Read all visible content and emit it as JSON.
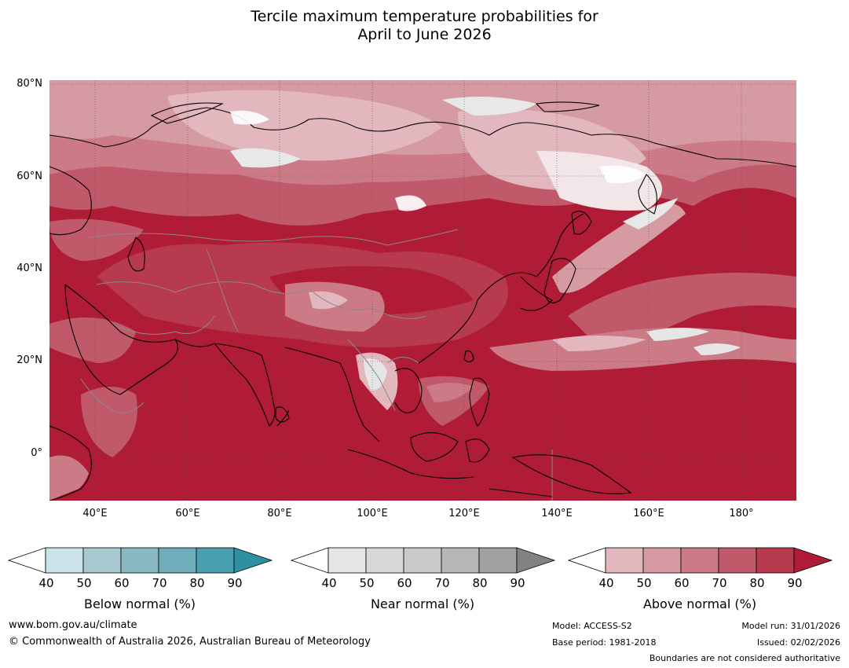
{
  "title_line1": "Tercile maximum temperature probabilities for",
  "title_line2": "April to June 2026",
  "lat_labels": [
    "80°N",
    "60°N",
    "40°N",
    "20°N",
    "0°"
  ],
  "lon_labels": [
    "40°E",
    "60°E",
    "80°E",
    "100°E",
    "120°E",
    "140°E",
    "160°E",
    "180°"
  ],
  "colorbars": [
    {
      "name": "below",
      "label": "Below normal (%)",
      "ticks": [
        "40",
        "50",
        "60",
        "70",
        "80",
        "90"
      ],
      "colors": [
        "#cbe2e8",
        "#a8c9d0",
        "#8ab8c2",
        "#6fadbb",
        "#4a9fb0",
        "#2f8fa3"
      ]
    },
    {
      "name": "near",
      "label": "Near normal (%)",
      "ticks": [
        "40",
        "50",
        "60",
        "70",
        "80",
        "90"
      ],
      "colors": [
        "#e6e6e6",
        "#d8d8d8",
        "#cacaca",
        "#b6b6b6",
        "#a0a0a0",
        "#828282"
      ]
    },
    {
      "name": "above",
      "label": "Above normal (%)",
      "ticks": [
        "40",
        "50",
        "60",
        "70",
        "80",
        "90"
      ],
      "colors": [
        "#e2b8be",
        "#d69aa2",
        "#cc7a86",
        "#c05a6a",
        "#b83a4e",
        "#b01c36"
      ]
    }
  ],
  "footer": {
    "website": "www.bom.gov.au/climate",
    "copyright": "© Commonwealth of Australia 2026, Australian Bureau of Meteorology",
    "model": "Model: ACCESS-S2",
    "base_period": "Base period: 1981-2018",
    "model_run": "Model run: 31/01/2026",
    "issued": "Issued: 02/02/2026",
    "disclaimer": "Boundaries are not considered authoritative"
  }
}
